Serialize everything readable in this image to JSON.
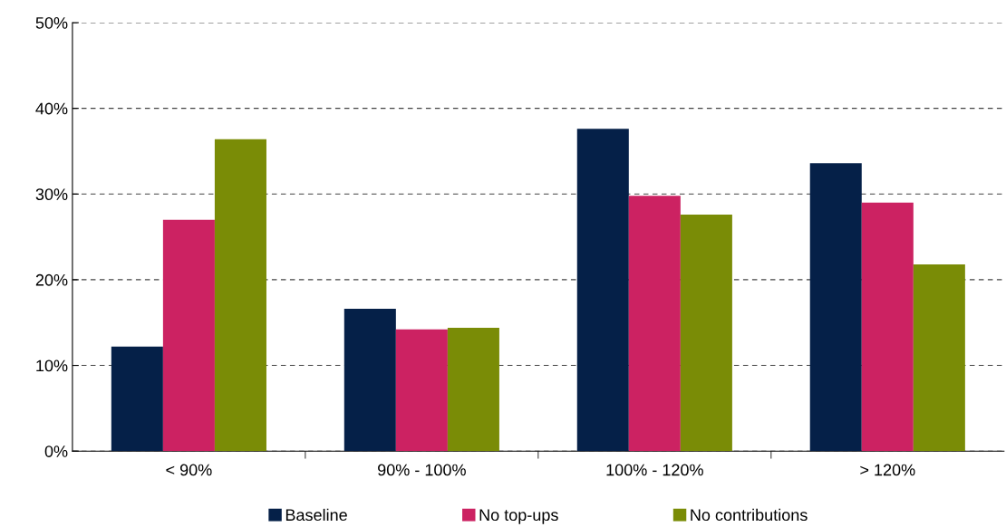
{
  "chart_data": {
    "type": "bar",
    "categories": [
      "< 90%",
      "90% - 100%",
      "100% - 120%",
      "> 120%"
    ],
    "series": [
      {
        "name": "Baseline",
        "color": "#052048",
        "values": [
          12.2,
          16.6,
          37.6,
          33.6
        ]
      },
      {
        "name": "No top-ups",
        "color": "#cc2262",
        "values": [
          27.0,
          14.2,
          29.8,
          29.0
        ]
      },
      {
        "name": "No contributions",
        "color": "#7a8c06",
        "values": [
          36.4,
          14.4,
          27.6,
          21.8
        ]
      }
    ],
    "ylim": [
      0,
      50
    ],
    "yticks": [
      {
        "value": 0,
        "label": "0%"
      },
      {
        "value": 10,
        "label": "10%"
      },
      {
        "value": 20,
        "label": "20%"
      },
      {
        "value": 30,
        "label": "30%"
      },
      {
        "value": 40,
        "label": "40%"
      },
      {
        "value": 50,
        "label": "50%"
      }
    ],
    "grid": "y",
    "legend": "bottom"
  }
}
